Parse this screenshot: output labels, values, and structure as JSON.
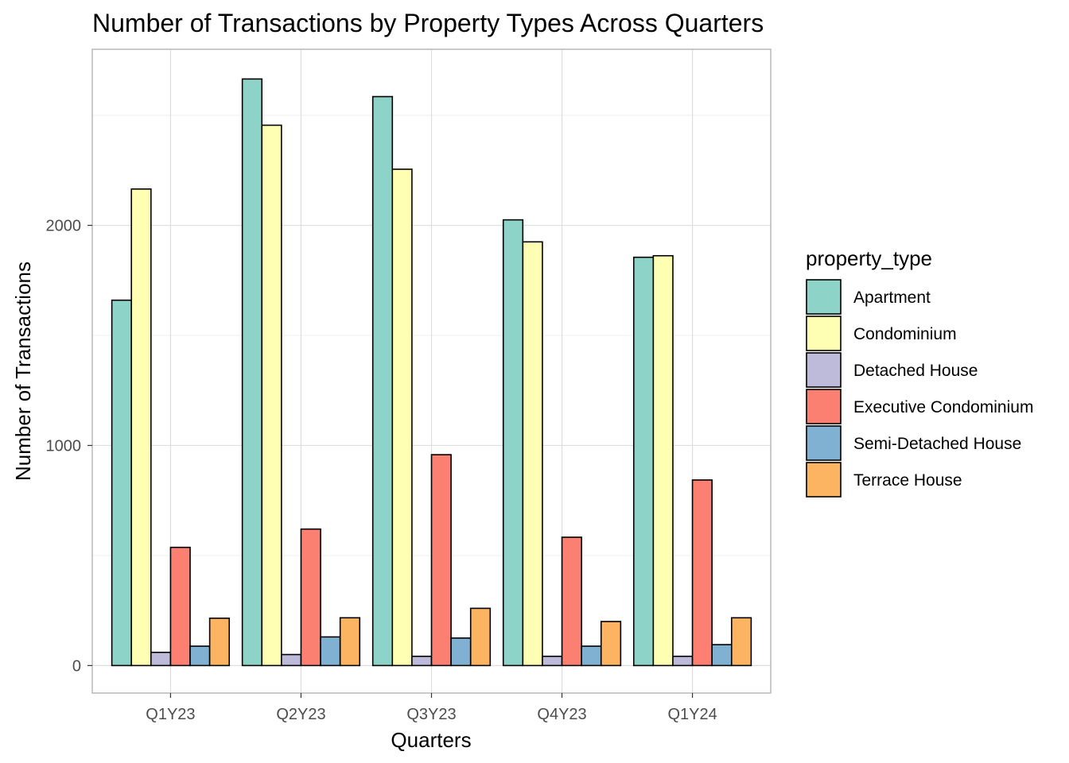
{
  "chart_data": {
    "type": "bar",
    "title": "Number of Transactions by Property Types Across Quarters",
    "xlabel": "Quarters",
    "ylabel": "Number of Transactions",
    "categories": [
      "Q1Y23",
      "Q2Y23",
      "Q3Y23",
      "Q4Y23",
      "Q1Y24"
    ],
    "ylim": [
      -125,
      2800
    ],
    "yticks": [
      0,
      1000,
      2000
    ],
    "y_minor_gridlines": [
      500,
      1500,
      2500
    ],
    "grid": true,
    "legend": {
      "title": "property_type",
      "placement": "right"
    },
    "series": [
      {
        "name": "Apartment",
        "color": "#8DD3C7",
        "values": [
          1660,
          2665,
          2585,
          2025,
          1855
        ]
      },
      {
        "name": "Condominium",
        "color": "#FFFFB3",
        "values": [
          2165,
          2455,
          2255,
          1925,
          1862
        ]
      },
      {
        "name": "Detached House",
        "color": "#BEBADA",
        "values": [
          60,
          50,
          42,
          42,
          42
        ]
      },
      {
        "name": "Executive Condominium",
        "color": "#FB8072",
        "values": [
          537,
          620,
          958,
          583,
          843
        ]
      },
      {
        "name": "Semi-Detached House",
        "color": "#80B1D3",
        "values": [
          88,
          130,
          125,
          88,
          95
        ]
      },
      {
        "name": "Terrace House",
        "color": "#FDB462",
        "values": [
          215,
          217,
          260,
          200,
          217
        ]
      }
    ]
  }
}
